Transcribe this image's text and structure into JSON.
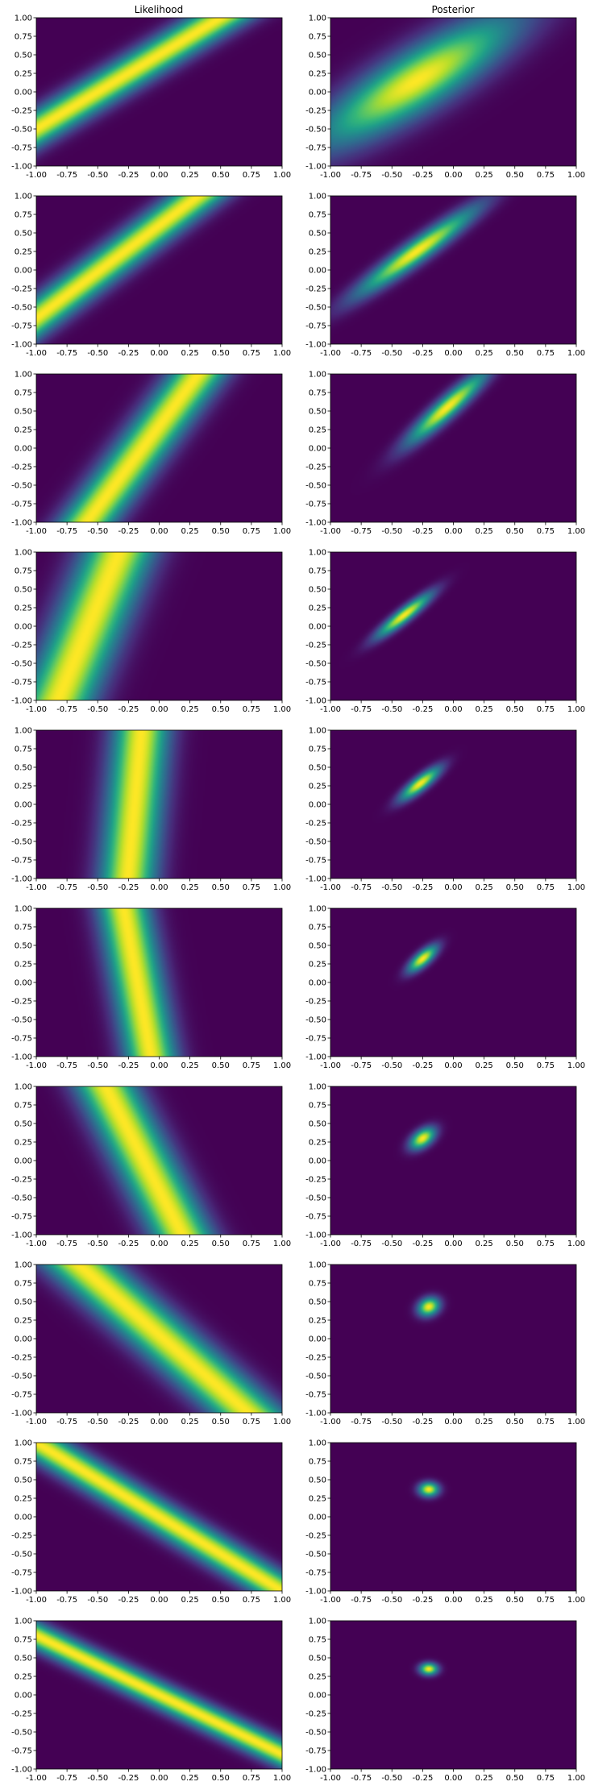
{
  "figure": {
    "column_titles": [
      "Likelihood",
      "Posterior"
    ],
    "colormap": "viridis",
    "colors": {
      "low": "#440154",
      "high": "#fde725",
      "axis": "#000000",
      "background": "#ffffff"
    }
  },
  "chart_data": [
    {
      "type": "heatmap",
      "row": 1,
      "panel": "Likelihood",
      "xlim": [
        -1,
        1
      ],
      "ylim": [
        -1,
        1
      ],
      "ridge": {
        "slope": 1.0,
        "intercept": 0.5,
        "width": 0.18
      }
    },
    {
      "type": "heatmap",
      "row": 1,
      "panel": "Posterior",
      "xlim": [
        -1,
        1
      ],
      "ylim": [
        -1,
        1
      ],
      "gaussian": {
        "mean": [
          -0.3,
          0.15
        ],
        "sd": [
          0.55,
          0.6
        ],
        "corr": 0.85
      }
    },
    {
      "type": "heatmap",
      "row": 2,
      "panel": "Likelihood",
      "xlim": [
        -1,
        1
      ],
      "ylim": [
        -1,
        1
      ],
      "ridge": {
        "slope": 1.25,
        "intercept": 0.6,
        "width": 0.2
      }
    },
    {
      "type": "heatmap",
      "row": 2,
      "panel": "Posterior",
      "xlim": [
        -1,
        1
      ],
      "ylim": [
        -1,
        1
      ],
      "gaussian": {
        "mean": [
          -0.3,
          0.25
        ],
        "sd": [
          0.33,
          0.4
        ],
        "corr": 0.95
      }
    },
    {
      "type": "heatmap",
      "row": 3,
      "panel": "Likelihood",
      "xlim": [
        -1,
        1
      ],
      "ylim": [
        -1,
        1
      ],
      "ridge": {
        "slope": 2.2,
        "intercept": 0.3,
        "width": 0.35
      }
    },
    {
      "type": "heatmap",
      "row": 3,
      "panel": "Posterior",
      "xlim": [
        -1,
        1
      ],
      "ylim": [
        -1,
        1
      ],
      "gaussian": {
        "mean": [
          -0.05,
          0.55
        ],
        "sd": [
          0.22,
          0.33
        ],
        "corr": 0.93
      }
    },
    {
      "type": "heatmap",
      "row": 4,
      "panel": "Likelihood",
      "xlim": [
        -1,
        1
      ],
      "ylim": [
        -1,
        1
      ],
      "ridge": {
        "slope": 4.0,
        "intercept": 2.3,
        "width": 0.8
      }
    },
    {
      "type": "heatmap",
      "row": 4,
      "panel": "Posterior",
      "xlim": [
        -1,
        1
      ],
      "ylim": [
        -1,
        1
      ],
      "gaussian": {
        "mean": [
          -0.4,
          0.15
        ],
        "sd": [
          0.15,
          0.2
        ],
        "corr": 0.92
      }
    },
    {
      "type": "heatmap",
      "row": 5,
      "panel": "Likelihood",
      "xlim": [
        -1,
        1
      ],
      "ylim": [
        -1,
        1
      ],
      "ridge": {
        "slope": 18.0,
        "intercept": 3.6,
        "width": 2.8
      }
    },
    {
      "type": "heatmap",
      "row": 5,
      "panel": "Posterior",
      "xlim": [
        -1,
        1
      ],
      "ylim": [
        -1,
        1
      ],
      "gaussian": {
        "mean": [
          -0.27,
          0.28
        ],
        "sd": [
          0.11,
          0.15
        ],
        "corr": 0.85
      }
    },
    {
      "type": "heatmap",
      "row": 6,
      "panel": "Likelihood",
      "xlim": [
        -1,
        1
      ],
      "ylim": [
        -1,
        1
      ],
      "ridge": {
        "slope": -9.0,
        "intercept": -1.6,
        "width": 1.3
      }
    },
    {
      "type": "heatmap",
      "row": 6,
      "panel": "Posterior",
      "xlim": [
        -1,
        1
      ],
      "ylim": [
        -1,
        1
      ],
      "gaussian": {
        "mean": [
          -0.25,
          0.32
        ],
        "sd": [
          0.08,
          0.12
        ],
        "corr": 0.75
      }
    },
    {
      "type": "heatmap",
      "row": 7,
      "panel": "Likelihood",
      "xlim": [
        -1,
        1
      ],
      "ylim": [
        -1,
        1
      ],
      "ridge": {
        "slope": -3.2,
        "intercept": -0.4,
        "width": 0.55
      }
    },
    {
      "type": "heatmap",
      "row": 7,
      "panel": "Posterior",
      "xlim": [
        -1,
        1
      ],
      "ylim": [
        -1,
        1
      ],
      "gaussian": {
        "mean": [
          -0.25,
          0.3
        ],
        "sd": [
          0.07,
          0.1
        ],
        "corr": 0.5
      }
    },
    {
      "type": "heatmap",
      "row": 8,
      "panel": "Likelihood",
      "xlim": [
        -1,
        1
      ],
      "ylim": [
        -1,
        1
      ],
      "ridge": {
        "slope": -1.45,
        "intercept": 0.05,
        "width": 0.3
      }
    },
    {
      "type": "heatmap",
      "row": 8,
      "panel": "Posterior",
      "xlim": [
        -1,
        1
      ],
      "ylim": [
        -1,
        1
      ],
      "gaussian": {
        "mean": [
          -0.2,
          0.43
        ],
        "sd": [
          0.06,
          0.085
        ],
        "corr": 0.2
      }
    },
    {
      "type": "heatmap",
      "row": 9,
      "panel": "Likelihood",
      "xlim": [
        -1,
        1
      ],
      "ylim": [
        -1,
        1
      ],
      "ridge": {
        "slope": -1.0,
        "intercept": 0.0,
        "width": 0.17
      }
    },
    {
      "type": "heatmap",
      "row": 9,
      "panel": "Posterior",
      "xlim": [
        -1,
        1
      ],
      "ylim": [
        -1,
        1
      ],
      "gaussian": {
        "mean": [
          -0.2,
          0.37
        ],
        "sd": [
          0.055,
          0.065
        ],
        "corr": 0.0
      }
    },
    {
      "type": "heatmap",
      "row": 10,
      "panel": "Likelihood",
      "xlim": [
        -1,
        1
      ],
      "ylim": [
        -1,
        1
      ],
      "ridge": {
        "slope": -0.8,
        "intercept": 0.0,
        "width": 0.13
      }
    },
    {
      "type": "heatmap",
      "row": 10,
      "panel": "Posterior",
      "xlim": [
        -1,
        1
      ],
      "ylim": [
        -1,
        1
      ],
      "gaussian": {
        "mean": [
          -0.2,
          0.35
        ],
        "sd": [
          0.05,
          0.055
        ],
        "corr": 0.0
      }
    }
  ]
}
